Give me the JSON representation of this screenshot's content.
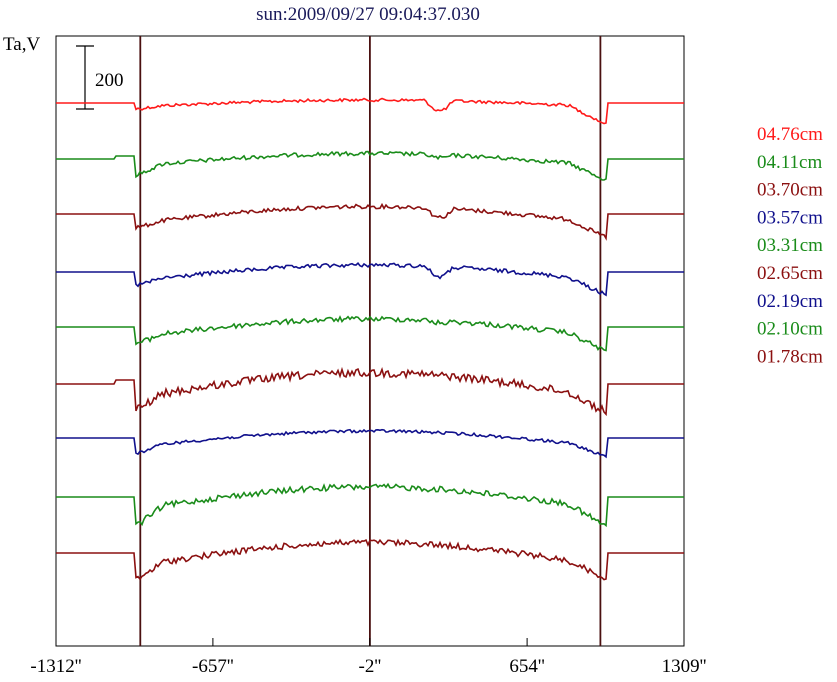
{
  "chart_data": {
    "type": "line",
    "title": "sun:2009/09/27 09:04:37.030",
    "ylabel": "Ta,V",
    "scale_bar": {
      "label": "200",
      "value": 200
    },
    "xlim": [
      -1312,
      1309
    ],
    "x_ticks": [
      {
        "value": -1312,
        "label": "-1312''"
      },
      {
        "value": -657,
        "label": "-657''"
      },
      {
        "value": -2,
        "label": "-2''"
      },
      {
        "value": 654,
        "label": "654''"
      },
      {
        "value": 1309,
        "label": "1309''"
      }
    ],
    "limb_lines": [
      -960,
      -2,
      960
    ],
    "series": [
      {
        "name": "04.76cm",
        "color": "#ff1a1a",
        "baseline": 103,
        "depth": 12,
        "dip_left": 2,
        "dip_right": 15,
        "peak_dip": 10,
        "noise": 1.5,
        "spike_left": 0
      },
      {
        "name": "04.11cm",
        "color": "#1a8c1a",
        "baseline": 159,
        "depth": 22,
        "dip_left": 8,
        "dip_right": 12,
        "peak_dip": 3,
        "noise": 2,
        "spike_left": 3
      },
      {
        "name": "03.70cm",
        "color": "#8b1010",
        "baseline": 214,
        "depth": 30,
        "dip_left": 4,
        "dip_right": 12,
        "peak_dip": 9,
        "noise": 2,
        "spike_left": 0
      },
      {
        "name": "03.57cm",
        "color": "#10108c",
        "baseline": 272,
        "depth": 28,
        "dip_left": 4,
        "dip_right": 12,
        "peak_dip": 10,
        "noise": 2,
        "spike_left": 0
      },
      {
        "name": "03.31cm",
        "color": "#1a8c1a",
        "baseline": 327,
        "depth": 32,
        "dip_left": 6,
        "dip_right": 12,
        "peak_dip": 2,
        "noise": 2.5,
        "spike_left": 0
      },
      {
        "name": "02.65cm",
        "color": "#8b1010",
        "baseline": 384,
        "depth": 45,
        "dip_left": 10,
        "dip_right": 12,
        "peak_dip": 0,
        "noise": 4,
        "spike_left": 4
      },
      {
        "name": "02.19cm",
        "color": "#10108c",
        "baseline": 438,
        "depth": 28,
        "dip_left": 6,
        "dip_right": 8,
        "peak_dip": 0,
        "noise": 1.5,
        "spike_left": 0
      },
      {
        "name": "02.10cm",
        "color": "#1a8c1a",
        "baseline": 497,
        "depth": 40,
        "dip_left": 14,
        "dip_right": 14,
        "peak_dip": 0,
        "noise": 3,
        "spike_left": 0
      },
      {
        "name": "01.78cm",
        "color": "#8b1010",
        "baseline": 553,
        "depth": 42,
        "dip_left": 12,
        "dip_right": 10,
        "peak_dip": 0,
        "noise": 3,
        "spike_left": 0
      }
    ]
  }
}
